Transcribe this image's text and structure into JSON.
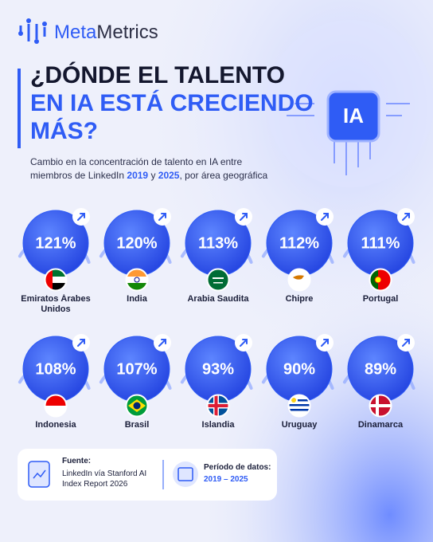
{
  "brand": {
    "part1": "Meta",
    "part2": "Metrics"
  },
  "badge": "IA",
  "footer": {
    "source_label": "Fuente:",
    "source_text": "LinkedIn vía Stanford AI Index Report 2026",
    "period_label": "Período de datos:",
    "period_value": "2019 – 2025"
  },
  "chart_data": {
    "type": "bubble",
    "title": {
      "line1": "¿DÓNDE EL TALENTO",
      "line2": "EN IA ESTÁ CRECIENDO",
      "line3": "MÁS?"
    },
    "subtitle": {
      "part1": "Cambio en la concentración de talento en IA entre miembros de LinkedIn ",
      "year1": "2019",
      "part2": " y ",
      "year2": "2025",
      "part3": ", por área geográfica"
    },
    "categories": [
      "Emiratos Árabes Unidos",
      "India",
      "Arabia Saudita",
      "Chipre",
      "Portugal",
      "Indonesia",
      "Brasil",
      "Islandia",
      "Uruguay",
      "Dinamarca"
    ],
    "values": [
      121,
      120,
      113,
      112,
      111,
      108,
      107,
      93,
      90,
      89
    ],
    "value_labels": [
      "121%",
      "120%",
      "113%",
      "112%",
      "111%",
      "108%",
      "107%",
      "93%",
      "90%",
      "89%"
    ],
    "color": "#2f5cf5"
  }
}
